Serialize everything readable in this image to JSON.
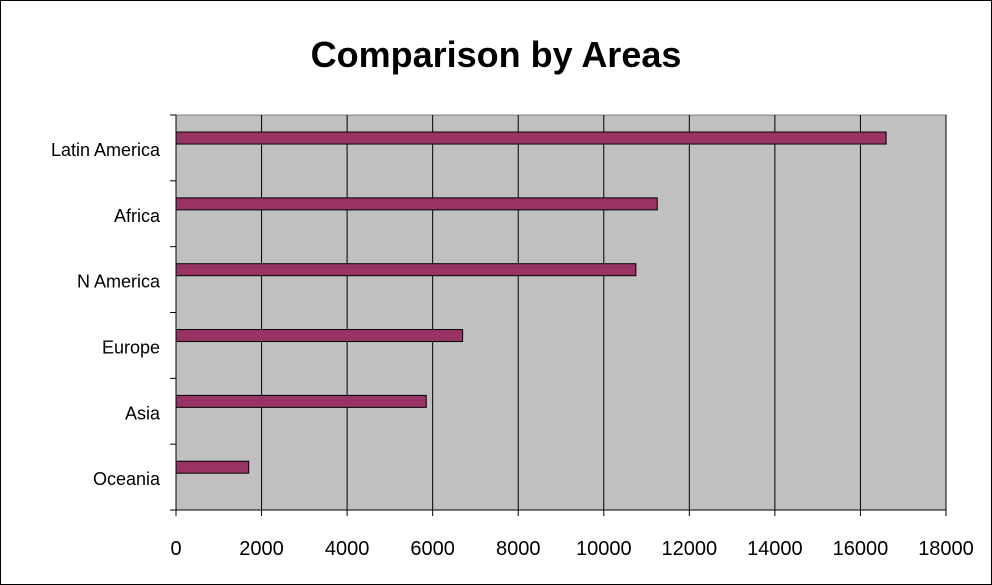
{
  "chart_data": {
    "type": "bar",
    "orientation": "horizontal",
    "title": "Comparison by Areas",
    "xlabel": "",
    "ylabel": "",
    "categories": [
      "Latin America",
      "Africa",
      "N America",
      "Europe",
      "Asia",
      "Oceania"
    ],
    "values": [
      16600,
      11250,
      10750,
      6700,
      5850,
      1700
    ],
    "xlim": [
      0,
      18000
    ],
    "xticks": [
      "0",
      "2000",
      "4000",
      "6000",
      "8000",
      "10000",
      "12000",
      "14000",
      "16000",
      "18000"
    ],
    "grid": "vertical",
    "legend": "none",
    "colors": {
      "bar": "#993366",
      "plot_background": "#c0c0c0",
      "gridline": "#000000"
    }
  }
}
